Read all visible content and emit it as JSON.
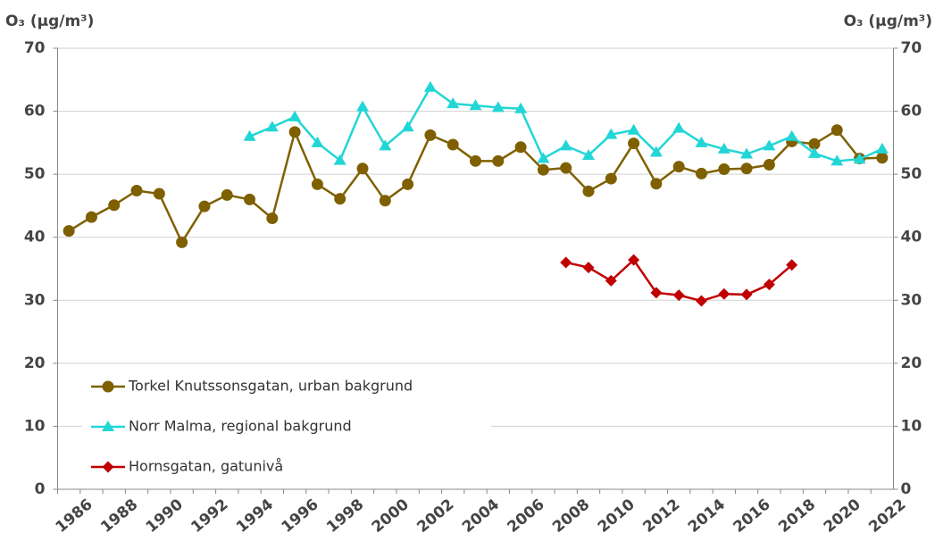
{
  "chart_data": {
    "type": "line",
    "y_label": "O₃ (µg/m³)",
    "y2_label": "O₃ (µg/m³)",
    "categories": [
      "1986",
      null,
      "1988",
      null,
      "1990",
      null,
      "1992",
      null,
      "1994",
      null,
      "1996",
      null,
      "1998",
      null,
      "2000",
      null,
      "2002",
      null,
      "2004",
      null,
      "2006",
      null,
      "2008",
      null,
      "2010",
      null,
      "2012",
      null,
      "2014",
      null,
      "2016",
      null,
      "2018",
      null,
      "2020",
      null,
      "2022"
    ],
    "series": [
      {
        "name": "Torkel Knutssonsgatan, urban bakgrund",
        "color": "#7f6000",
        "marker": "circle",
        "values": [
          41.0,
          43.2,
          45.1,
          47.4,
          46.9,
          39.2,
          44.9,
          46.7,
          46.0,
          43.0,
          56.7,
          48.4,
          46.1,
          50.9,
          45.8,
          48.4,
          56.2,
          54.7,
          52.1,
          52.1,
          54.3,
          50.7,
          51.0,
          47.3,
          49.3,
          54.9,
          48.5,
          51.2,
          50.1,
          50.8,
          50.9,
          51.5,
          55.2,
          54.8,
          57.0,
          52.5,
          52.6
        ]
      },
      {
        "name": "Norr Malma, regional bakgrund",
        "color": "#22d6d6",
        "marker": "triangle",
        "values": [
          null,
          null,
          null,
          null,
          null,
          null,
          null,
          null,
          56.0,
          57.5,
          59.1,
          55.0,
          52.2,
          60.7,
          54.5,
          57.5,
          63.8,
          61.2,
          60.9,
          60.6,
          60.4,
          52.5,
          54.5,
          53.0,
          56.3,
          57.0,
          53.5,
          57.3,
          55.0,
          54.0,
          53.2,
          54.5,
          56.0,
          53.3,
          52.1,
          52.4,
          54.0
        ]
      },
      {
        "name": "Hornsgatan, gatunivå",
        "color": "#c00000",
        "marker": "diamond",
        "values": [
          null,
          null,
          null,
          null,
          null,
          null,
          null,
          null,
          null,
          null,
          null,
          null,
          null,
          null,
          null,
          null,
          null,
          null,
          null,
          null,
          null,
          null,
          36.0,
          35.2,
          33.1,
          36.4,
          31.2,
          30.8,
          29.9,
          31.0,
          30.9,
          32.5,
          35.6,
          null,
          null,
          null,
          null
        ]
      }
    ],
    "ylim": [
      0,
      70
    ],
    "yticks": [
      0,
      10,
      20,
      30,
      40,
      50,
      60,
      70
    ],
    "y2lim": [
      0,
      70
    ],
    "y2ticks": [
      0,
      10,
      20,
      30,
      40,
      50,
      60,
      70
    ],
    "grid": true,
    "legend": "lower-left"
  }
}
